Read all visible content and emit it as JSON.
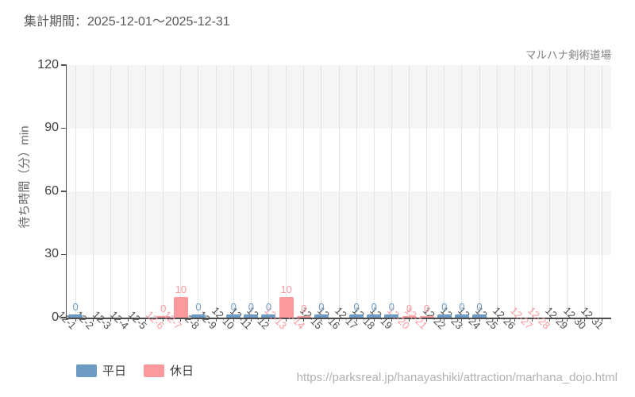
{
  "header": {
    "period": "集計期間：2025-12-01～2025-12-31"
  },
  "chart_data": {
    "type": "bar",
    "title": "マルハナ剣術道場",
    "xlabel": "",
    "ylabel": "待ち時間（分）min",
    "ylim": [
      0,
      120
    ],
    "yticks": [
      0,
      30,
      60,
      90,
      120
    ],
    "legend_position": "bottom-left",
    "grid": true,
    "colors": {
      "weekday": "#6d9bc3",
      "holiday": "#fa999e",
      "weekday_tick_label": "#4d4d4d",
      "holiday_tick_label": "#fa999e",
      "axis": "#4d4d4d",
      "band_gray": "#f5f5f5",
      "band_white": "#ffffff",
      "gridline": "#e4e4e4"
    },
    "legend": [
      {
        "name": "平日",
        "color": "#6d9bc3"
      },
      {
        "name": "休日",
        "color": "#fa999e"
      }
    ],
    "days": [
      {
        "label": "12-1",
        "kind": "weekday",
        "value": 0
      },
      {
        "label": "12-2",
        "kind": "weekday",
        "value": null
      },
      {
        "label": "12-3",
        "kind": "weekday",
        "value": null
      },
      {
        "label": "12-4",
        "kind": "weekday",
        "value": null
      },
      {
        "label": "12-5",
        "kind": "weekday",
        "value": null
      },
      {
        "label": "12-6",
        "kind": "holiday",
        "value": 0
      },
      {
        "label": "12-7",
        "kind": "holiday",
        "value": 10
      },
      {
        "label": "12-8",
        "kind": "weekday",
        "value": 0
      },
      {
        "label": "12-9",
        "kind": "weekday",
        "value": null
      },
      {
        "label": "12-10",
        "kind": "weekday",
        "value": 0
      },
      {
        "label": "12-11",
        "kind": "weekday",
        "value": 0
      },
      {
        "label": "12-12",
        "kind": "weekday",
        "value": 0
      },
      {
        "label": "12-13",
        "kind": "holiday",
        "value": 10
      },
      {
        "label": "12-14",
        "kind": "holiday",
        "value": 0
      },
      {
        "label": "12-15",
        "kind": "weekday",
        "value": 0
      },
      {
        "label": "12-16",
        "kind": "weekday",
        "value": null
      },
      {
        "label": "12-17",
        "kind": "weekday",
        "value": 0
      },
      {
        "label": "12-18",
        "kind": "weekday",
        "value": 0
      },
      {
        "label": "12-19",
        "kind": "weekday",
        "value": 0
      },
      {
        "label": "12-20",
        "kind": "holiday",
        "value": 0
      },
      {
        "label": "12-21",
        "kind": "holiday",
        "value": 0
      },
      {
        "label": "12-22",
        "kind": "weekday",
        "value": 0
      },
      {
        "label": "12-23",
        "kind": "weekday",
        "value": 0
      },
      {
        "label": "12-24",
        "kind": "weekday",
        "value": 0
      },
      {
        "label": "12-25",
        "kind": "weekday",
        "value": null
      },
      {
        "label": "12-26",
        "kind": "weekday",
        "value": null
      },
      {
        "label": "12-27",
        "kind": "holiday",
        "value": null
      },
      {
        "label": "12-28",
        "kind": "holiday",
        "value": null
      },
      {
        "label": "12-29",
        "kind": "weekday",
        "value": null
      },
      {
        "label": "12-30",
        "kind": "weekday",
        "value": null
      },
      {
        "label": "12-31",
        "kind": "weekday",
        "value": null
      }
    ]
  },
  "footer": {
    "url": "https://parksreal.jp/hanayashiki/attraction/marhana_dojo.html"
  }
}
